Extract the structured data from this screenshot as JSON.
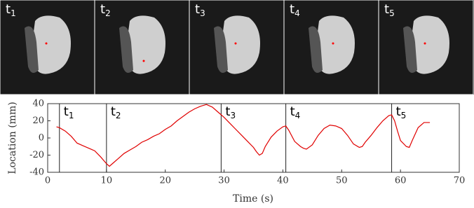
{
  "panels": [
    {
      "label": "t",
      "sub": "1"
    },
    {
      "label": "t",
      "sub": "2"
    },
    {
      "label": "t",
      "sub": "3"
    },
    {
      "label": "t",
      "sub": "4"
    },
    {
      "label": "t",
      "sub": "5"
    }
  ],
  "chart_data": {
    "type": "line",
    "xlabel": "Time (s)",
    "ylabel": "Location (mm)",
    "xlim": [
      0,
      70
    ],
    "ylim": [
      -40,
      40
    ],
    "xticks": [
      0,
      10,
      20,
      30,
      40,
      50,
      60,
      70
    ],
    "yticks": [
      -40,
      -20,
      0,
      20,
      40
    ],
    "x": [
      1.5,
      2,
      3,
      4,
      5,
      6,
      7,
      8,
      9,
      10,
      10.5,
      11,
      12,
      13,
      14,
      15,
      16,
      17,
      18,
      19,
      20,
      21,
      22,
      23,
      24,
      25,
      26,
      27,
      28,
      29,
      30,
      31,
      32,
      33,
      34,
      35,
      35.5,
      36,
      36.5,
      37,
      38,
      39,
      40,
      40.5,
      41,
      42,
      43,
      43.5,
      44,
      45,
      46,
      47,
      48,
      49,
      50,
      51,
      52,
      53,
      53.5,
      54,
      55,
      56,
      57,
      58,
      58.5,
      59,
      59.5,
      60,
      61,
      61.5,
      62,
      63,
      64,
      65
    ],
    "series": [
      {
        "color": "#e00000",
        "values": [
          13,
          12,
          8,
          2,
          -6,
          -9,
          -12,
          -15,
          -22,
          -30,
          -33,
          -30,
          -24,
          -18,
          -14,
          -10,
          -5,
          -2,
          2,
          5,
          10,
          14,
          20,
          25,
          30,
          34,
          37,
          39,
          36,
          30,
          24,
          17,
          10,
          3,
          -4,
          -11,
          -16,
          -20,
          -18,
          -10,
          1,
          8,
          13,
          14,
          9,
          -4,
          -10,
          -12,
          -13,
          -8,
          3,
          11,
          15,
          14,
          11,
          3,
          -7,
          -11,
          -10,
          -5,
          3,
          12,
          20,
          26,
          27,
          20,
          8,
          -3,
          -10,
          -11,
          -3,
          12,
          18,
          18
        ]
      }
    ],
    "markers": [
      {
        "x": 2,
        "label": "t",
        "sub": "1"
      },
      {
        "x": 10,
        "label": "t",
        "sub": "2"
      },
      {
        "x": 29.5,
        "label": "t",
        "sub": "3"
      },
      {
        "x": 40.5,
        "label": "t",
        "sub": "4"
      },
      {
        "x": 58.5,
        "label": "t",
        "sub": "5"
      }
    ]
  }
}
